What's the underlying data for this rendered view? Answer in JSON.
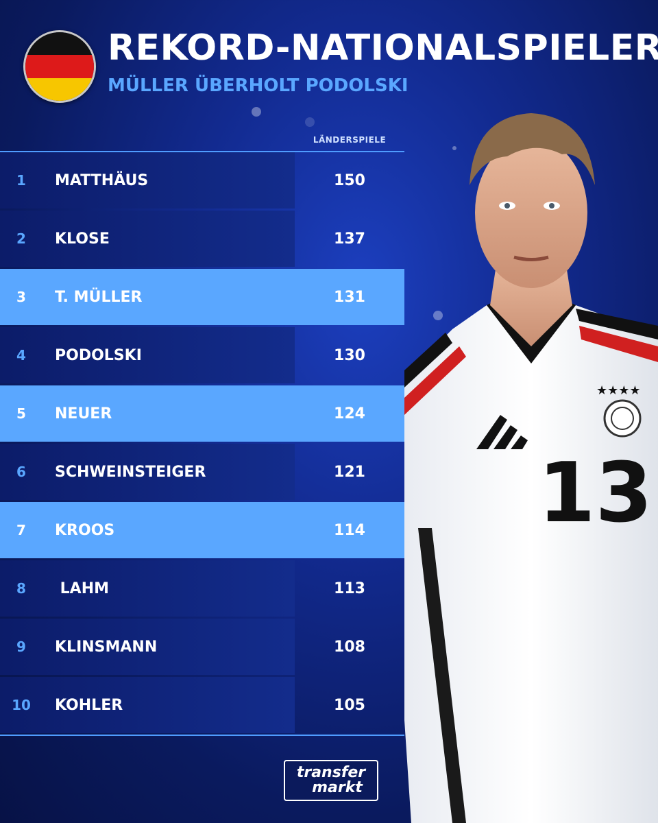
{
  "header": {
    "title": "REKORD-NATIONALSPIELER",
    "subtitle": "MÜLLER ÜBERHOLT PODOLSKI"
  },
  "flag": {
    "stripes": [
      "#111111",
      "#dd1a1a",
      "#f7c600"
    ]
  },
  "table": {
    "column_header": "LÄNDERSPIELE",
    "rows": [
      {
        "rank": "1",
        "name": "MATTHÄUS",
        "value": "150"
      },
      {
        "rank": "2",
        "name": "KLOSE",
        "value": "137"
      },
      {
        "rank": "3",
        "name": "T. MÜLLER",
        "value": "131"
      },
      {
        "rank": "4",
        "name": "PODOLSKI",
        "value": "130"
      },
      {
        "rank": "5",
        "name": "NEUER",
        "value": "124"
      },
      {
        "rank": "6",
        "name": "SCHWEINSTEIGER",
        "value": "121"
      },
      {
        "rank": "7",
        "name": "KROOS",
        "value": "114"
      },
      {
        "rank": "8",
        "name": " LAHM",
        "value": "113"
      },
      {
        "rank": "9",
        "name": "KLINSMANN",
        "value": "108"
      },
      {
        "rank": "10",
        "name": "KOHLER",
        "value": "105"
      }
    ]
  },
  "jersey": {
    "number": "13"
  },
  "logo": {
    "line1": "transfer",
    "line2": "markt"
  },
  "colors": {
    "accent": "#5aa7ff",
    "background": "#0a1a5e"
  }
}
